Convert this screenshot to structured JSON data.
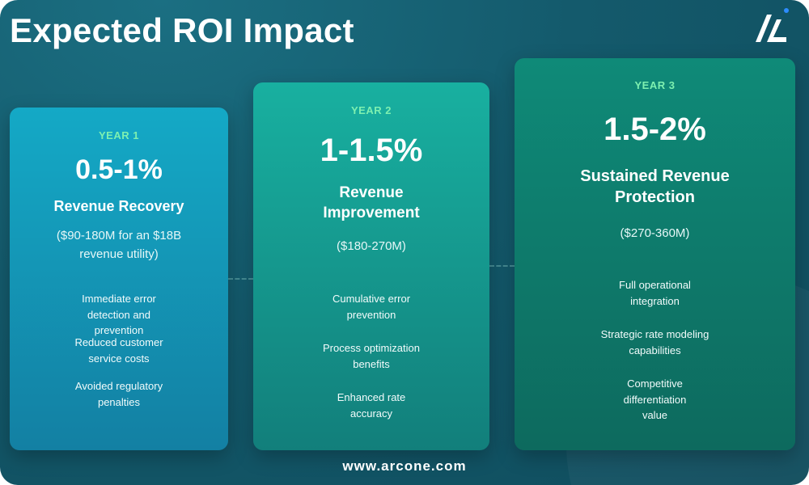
{
  "title": "Expected ROI Impact",
  "logo": "arcone-logo",
  "footer": "www.arcone.com",
  "cards": [
    {
      "year": "YEAR 1",
      "value": "0.5-1%",
      "headline": "Revenue Recovery",
      "subtext": "($90-180M for an $18B revenue utility)",
      "features": [
        "Immediate error detection and prevention",
        "Reduced customer service costs",
        "Avoided regulatory penalties"
      ]
    },
    {
      "year": "YEAR 2",
      "value": "1-1.5%",
      "headline": "Revenue Improvement",
      "subtext": "($180-270M)",
      "features": [
        "Cumulative error prevention",
        "Process optimization benefits",
        "Enhanced rate accuracy"
      ]
    },
    {
      "year": "YEAR 3",
      "value": "1.5-2%",
      "headline": "Sustained Revenue Protection",
      "subtext": "($270-360M)",
      "features": [
        "Full operational integration",
        "Strategic rate modeling capabilities",
        "Competitive differentiation value"
      ]
    }
  ],
  "colors": {
    "accent_year_label": "#7ef0b0",
    "card1": "#14a9c6",
    "card2": "#18b0a0",
    "card3": "#0f8a78",
    "background": "#145a6c"
  }
}
